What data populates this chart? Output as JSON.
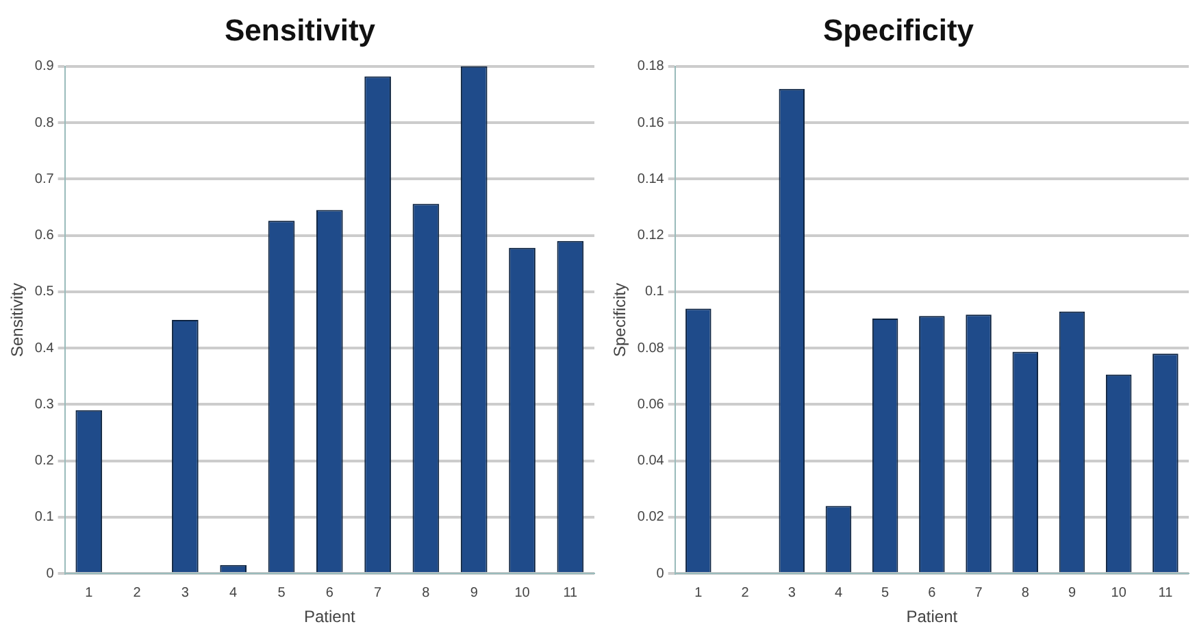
{
  "chart_data": [
    {
      "type": "bar",
      "title": "Sensitivity",
      "xlabel": "Patient",
      "ylabel": "Sensitivity",
      "categories": [
        "1",
        "2",
        "3",
        "4",
        "5",
        "6",
        "7",
        "8",
        "9",
        "10",
        "11"
      ],
      "series": [
        {
          "color": "#1f4b8a",
          "values": [
            0.29,
            0,
            0.45,
            0.015,
            0.626,
            0.645,
            0.882,
            0.656,
            0.9,
            0.578,
            0.59
          ]
        }
      ],
      "ylim": [
        0,
        0.9
      ],
      "yticks": [
        0,
        0.1,
        0.2,
        0.3,
        0.4,
        0.5,
        0.6,
        0.7,
        0.8,
        0.9
      ],
      "grid": "y",
      "legend": false
    },
    {
      "type": "bar",
      "title": "Specificity",
      "xlabel": "Patient",
      "ylabel": "Specificity",
      "categories": [
        "1",
        "2",
        "3",
        "4",
        "5",
        "6",
        "7",
        "8",
        "9",
        "10",
        "11"
      ],
      "series": [
        {
          "color": "#1f4b8a",
          "values": [
            0.094,
            0,
            0.172,
            0.024,
            0.0905,
            0.0914,
            0.0919,
            0.0787,
            0.093,
            0.0706,
            0.078
          ]
        }
      ],
      "ylim": [
        0,
        0.18
      ],
      "yticks": [
        0,
        0.02,
        0.04,
        0.06,
        0.08,
        0.1,
        0.12,
        0.14,
        0.16,
        0.18
      ],
      "grid": "y",
      "legend": false
    }
  ]
}
